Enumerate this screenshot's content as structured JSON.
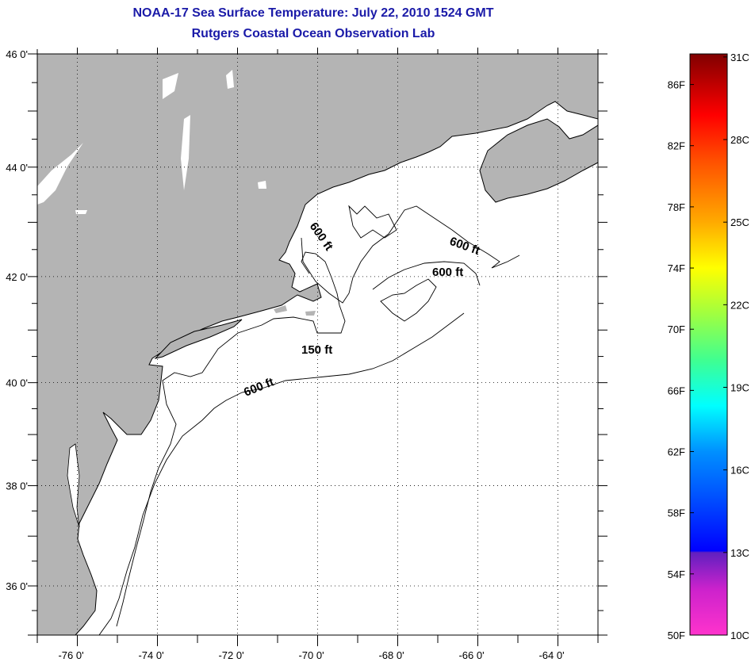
{
  "header": {
    "title": "NOAA-17 Sea Surface Temperature:  July 22, 2010 1524 GMT",
    "subtitle": "Rutgers Coastal Ocean Observation Lab"
  },
  "map": {
    "lon_range": [
      -77,
      -63
    ],
    "lat_range": [
      35,
      46
    ],
    "lon_labels": [
      {
        "lon": -76,
        "text": "-76 0'"
      },
      {
        "lon": -74,
        "text": "-74 0'"
      },
      {
        "lon": -72,
        "text": "-72 0'"
      },
      {
        "lon": -70,
        "text": "-70 0'"
      },
      {
        "lon": -68,
        "text": "-68 0'"
      },
      {
        "lon": -66,
        "text": "-66 0'"
      },
      {
        "lon": -64,
        "text": "-64 0'"
      }
    ],
    "lat_labels": [
      {
        "lat": 46,
        "text": "46 0'"
      },
      {
        "lat": 44,
        "text": "44 0'"
      },
      {
        "lat": 42,
        "text": "42 0'"
      },
      {
        "lat": 40,
        "text": "40 0'"
      },
      {
        "lat": 38,
        "text": "38 0'"
      },
      {
        "lat": 36,
        "text": "36 0'"
      }
    ],
    "contour_labels": [
      "600 ft",
      "600 ft",
      "600 ft",
      "150 ft",
      "600 ft"
    ],
    "land_color": "#b4b4b4",
    "water_color": "#ffffff"
  },
  "colorbar": {
    "range_f": [
      50,
      88
    ],
    "f_labels": [
      "50F",
      "54F",
      "58F",
      "62F",
      "66F",
      "70F",
      "74F",
      "78F",
      "82F",
      "86F"
    ],
    "f_values": [
      50,
      54,
      58,
      62,
      66,
      70,
      74,
      78,
      82,
      86
    ],
    "c_labels": [
      "10C",
      "13C",
      "16C",
      "19C",
      "22C",
      "25C",
      "28C",
      "31C"
    ],
    "c_values": [
      10,
      13,
      16,
      19,
      22,
      25,
      28,
      31
    ],
    "stops": [
      {
        "f": 50,
        "color": "#ff33cc"
      },
      {
        "f": 53,
        "color": "#cc22cc"
      },
      {
        "f": 55.4,
        "color": "#6020c0"
      },
      {
        "f": 55.5,
        "color": "#0000ff"
      },
      {
        "f": 59,
        "color": "#0050ff"
      },
      {
        "f": 62,
        "color": "#0090ff"
      },
      {
        "f": 65,
        "color": "#00ffff"
      },
      {
        "f": 68,
        "color": "#40ff90"
      },
      {
        "f": 71,
        "color": "#a0ff40"
      },
      {
        "f": 74,
        "color": "#ffff00"
      },
      {
        "f": 77,
        "color": "#ffaa00"
      },
      {
        "f": 81,
        "color": "#ff5000"
      },
      {
        "f": 84,
        "color": "#ff0000"
      },
      {
        "f": 88,
        "color": "#800000"
      }
    ]
  }
}
